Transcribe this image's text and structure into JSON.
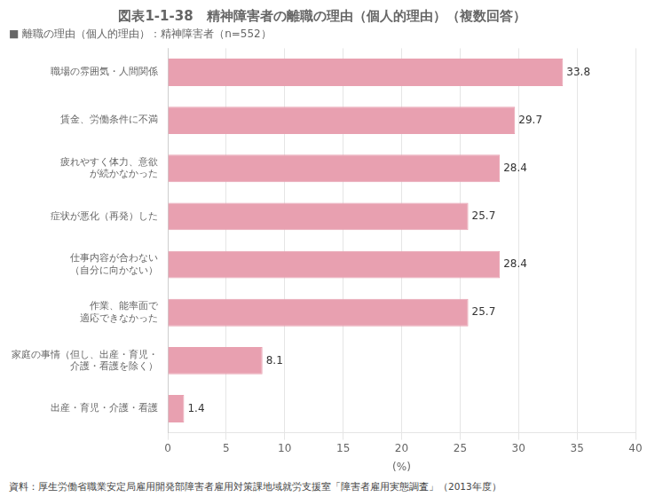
{
  "chart_data": {
    "type": "bar",
    "orientation": "horizontal",
    "title": "図表1-1-38　精神障害者の離職の理由（個人的理由）（複数回答）",
    "subtitle": "■ 離職の理由（個人的理由）：精神障害者（n=552）",
    "source": "資料：厚生労働省職業安定局雇用開発部障害者雇用対策課地域就労支援室「障害者雇用実態調査」（2013年度）",
    "categories": [
      "職場の雰囲気・人間関係",
      "賃金、労働条件に不満",
      "疲れやすく体力、意欲\nが続かなかった",
      "症状が悪化（再発）した",
      "仕事内容が合わない\n（自分に向かない）",
      "作業、能率面で\n適応できなかった",
      "家庭の事情（但し、出産・育児・\n介護・看護を除く）",
      "出産・育児・介護・看護"
    ],
    "values": [
      33.8,
      29.7,
      28.4,
      25.7,
      28.4,
      25.7,
      8.1,
      1.4
    ],
    "color": "#e8a0b0",
    "xlabel": "(%)",
    "xlim": [
      0,
      40
    ],
    "xticks": [
      0,
      5,
      10,
      15,
      20,
      25,
      30,
      35,
      40
    ],
    "grid": true,
    "data_labels": true
  }
}
